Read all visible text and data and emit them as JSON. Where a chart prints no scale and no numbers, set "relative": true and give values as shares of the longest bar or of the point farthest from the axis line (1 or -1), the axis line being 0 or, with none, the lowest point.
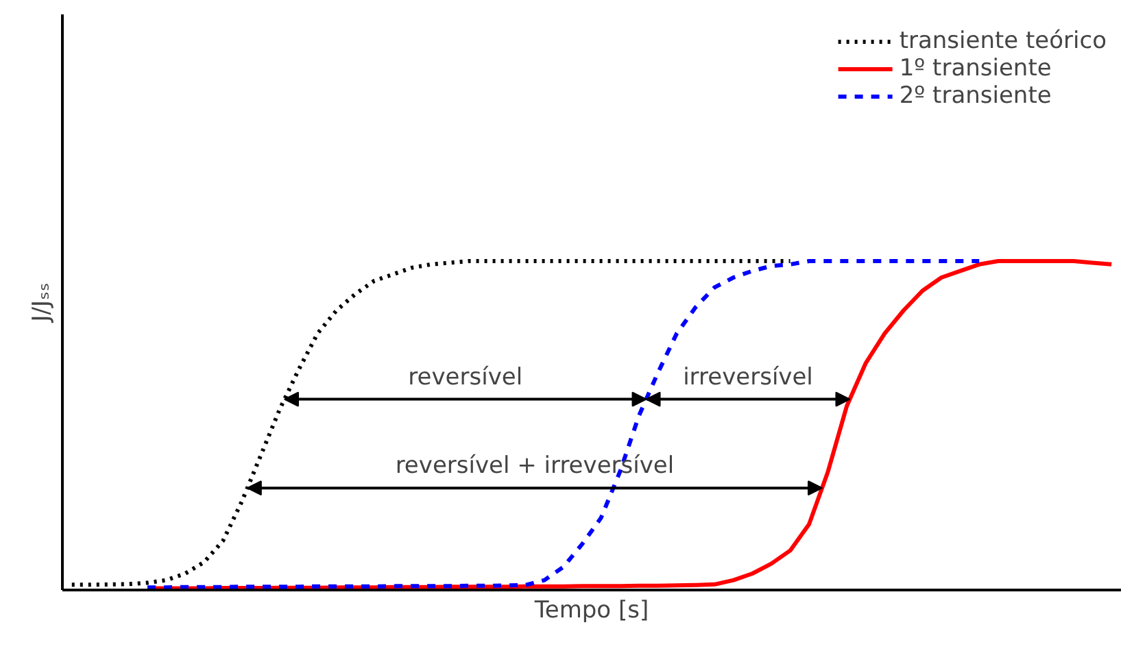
{
  "chart_data": {
    "type": "line",
    "relative": true,
    "xlabel": "Tempo [s]",
    "ylabel": "J/Jₛₛ",
    "grid": false,
    "legend": "top right",
    "tick_labels": false,
    "categories": [
      null,
      null,
      null,
      null,
      null,
      null,
      null,
      null,
      null,
      null,
      null,
      null,
      null,
      null,
      null,
      null,
      null,
      null,
      null,
      null,
      null,
      null,
      null,
      null,
      null,
      null,
      null,
      null,
      null,
      null,
      null,
      null,
      null,
      null,
      null,
      null,
      null,
      null,
      null,
      null,
      null,
      null,
      null,
      null,
      null,
      null,
      null,
      null,
      null,
      null,
      null,
      null,
      null,
      null,
      null,
      null
    ],
    "series": [
      {
        "name": "transiente teórico",
        "color": "#000000",
        "line_style": "dotted",
        "values": [
          0.016,
          0.016,
          0.017,
          0.018,
          0.022,
          0.03,
          0.05,
          0.085,
          0.15,
          0.27,
          0.41,
          0.55,
          0.67,
          0.78,
          0.85,
          0.9,
          0.94,
          0.96,
          0.98,
          0.99,
          0.995,
          1.0,
          1.0,
          1.0,
          1.0,
          1.0,
          1.0,
          1.0,
          1.0,
          1.0,
          1.0,
          1.0,
          1.0,
          1.0,
          1.0,
          1.0,
          1.0,
          1.0,
          1.0,
          null,
          null,
          null,
          null,
          null,
          null,
          null,
          null,
          null,
          null,
          null,
          null,
          null,
          null,
          null,
          null,
          null
        ]
      },
      {
        "name": "1º transiente",
        "color": "#ff0000",
        "line_style": "solid",
        "values": [
          null,
          null,
          null,
          null,
          0.005,
          0.005,
          0.005,
          0.005,
          0.006,
          0.006,
          0.006,
          0.007,
          0.007,
          0.007,
          0.008,
          0.008,
          0.008,
          0.009,
          0.009,
          0.009,
          0.01,
          0.01,
          0.01,
          0.01,
          0.011,
          0.011,
          0.011,
          0.012,
          0.012,
          0.012,
          0.013,
          0.013,
          0.014,
          0.015,
          0.017,
          0.03,
          0.05,
          0.08,
          0.12,
          0.2,
          0.36,
          0.56,
          0.69,
          0.78,
          0.85,
          0.91,
          0.95,
          0.97,
          0.99,
          1.0,
          1.0,
          1.0,
          1.0,
          1.0,
          0.995,
          0.99
        ]
      },
      {
        "name": "2º transiente",
        "color": "#0000ff",
        "line_style": "dashed",
        "values": [
          null,
          null,
          null,
          null,
          0.008,
          0.008,
          0.009,
          0.009,
          0.009,
          0.01,
          0.01,
          0.01,
          0.01,
          0.011,
          0.011,
          0.011,
          0.011,
          0.012,
          0.012,
          0.012,
          0.012,
          0.013,
          0.013,
          0.014,
          0.015,
          0.03,
          0.07,
          0.14,
          0.22,
          0.36,
          0.53,
          0.66,
          0.78,
          0.86,
          0.92,
          0.95,
          0.97,
          0.985,
          0.99,
          1.0,
          1.0,
          1.0,
          1.0,
          1.0,
          1.0,
          1.0,
          1.0,
          1.0,
          1.0,
          null,
          null,
          null,
          null,
          null,
          null,
          null
        ]
      }
    ],
    "annotations": [
      "reversível",
      "irreversível",
      "reversível + irreversível"
    ]
  }
}
